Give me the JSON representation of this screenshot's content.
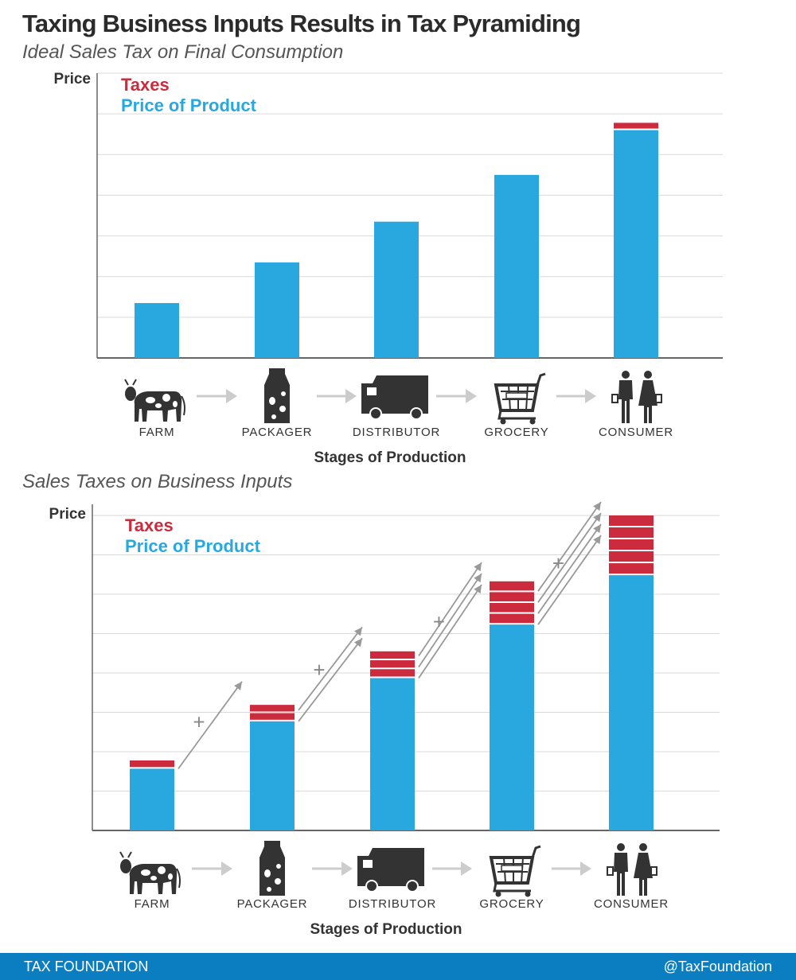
{
  "header": {
    "title": "Taxing Business Inputs Results in Tax Pyramiding"
  },
  "colors": {
    "tax": "#cb2b3d",
    "product": "#29a8e0",
    "grid": "#d9d9d9",
    "axis": "#666666",
    "arrow": "#999999",
    "icon": "#333333",
    "footer": "#0b7dc1"
  },
  "chart_data": [
    {
      "type": "bar",
      "title": "Ideal Sales Tax on Final Consumption",
      "ylabel": "Price",
      "xlabel": "Stages of Production",
      "grid": true,
      "legend": [
        "Taxes",
        "Price of Product"
      ],
      "legend_position": "top-left",
      "categories": [
        "FARM",
        "PACKAGER",
        "DISTRIBUTOR",
        "GROCERY",
        "CONSUMER"
      ],
      "icons": [
        "cow-icon",
        "milk-carton-icon",
        "truck-icon",
        "shopping-cart-icon",
        "people-icon"
      ],
      "ylim": [
        0,
        7
      ],
      "series": [
        {
          "name": "Price of Product",
          "values": [
            1.35,
            2.35,
            3.35,
            4.5,
            5.6
          ]
        },
        {
          "name": "Taxes",
          "values": [
            0,
            0,
            0,
            0,
            0.18
          ]
        }
      ]
    },
    {
      "type": "bar",
      "title": "Sales Taxes on Business Inputs",
      "ylabel": "Price",
      "xlabel": "Stages of Production",
      "grid": true,
      "legend": [
        "Taxes",
        "Price of Product"
      ],
      "legend_position": "top-left",
      "categories": [
        "FARM",
        "PACKAGER",
        "DISTRIBUTOR",
        "GROCERY",
        "CONSUMER"
      ],
      "icons": [
        "cow-icon",
        "milk-carton-icon",
        "truck-icon",
        "shopping-cart-icon",
        "people-icon"
      ],
      "annotations": [
        "+",
        "+",
        "+",
        "+"
      ],
      "ylim": [
        0,
        7.65
      ],
      "series": [
        {
          "name": "Price of Product",
          "values": [
            1.5,
            2.65,
            3.7,
            5.0,
            6.2
          ]
        },
        {
          "name": "Taxes",
          "tax_layers": [
            1,
            2,
            3,
            4,
            5
          ],
          "values": [
            0.2,
            0.4,
            0.65,
            1.05,
            1.45
          ]
        }
      ]
    }
  ],
  "footer": {
    "left": "TAX FOUNDATION",
    "right": "@TaxFoundation"
  }
}
